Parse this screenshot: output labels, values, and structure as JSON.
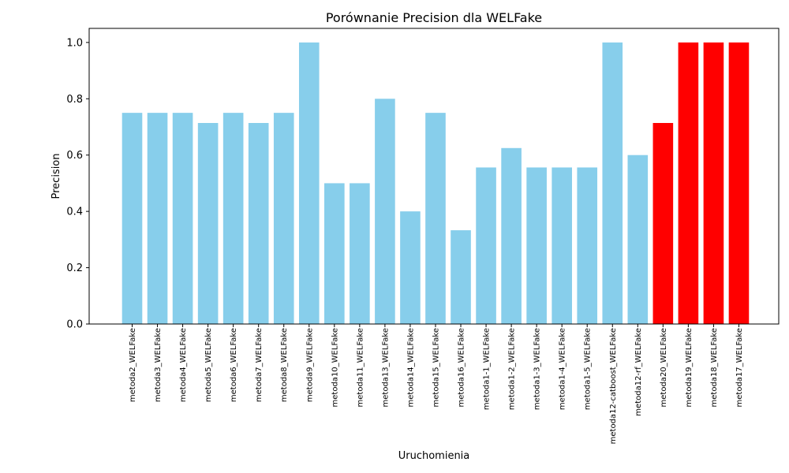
{
  "chart_data": {
    "type": "bar",
    "title": "Porównanie Precision dla WELFake",
    "xlabel": "Uruchomienia",
    "ylabel": "Precision",
    "ylim": [
      0,
      1.05
    ],
    "yticks": [
      "0.0",
      "0.2",
      "0.4",
      "0.6",
      "0.8",
      "1.0"
    ],
    "ytick_values": [
      0.0,
      0.2,
      0.4,
      0.6,
      0.8,
      1.0
    ],
    "categories": [
      "metoda2_WELFake",
      "metoda3_WELFake",
      "metoda4_WELFake",
      "metoda5_WELFake",
      "metoda6_WELFake",
      "metoda7_WELFake",
      "metoda8_WELFake",
      "metoda9_WELFake",
      "metoda10_WELFake",
      "metoda11_WELFake",
      "metoda13_WELFake",
      "metoda14_WELFake",
      "metoda15_WELFake",
      "metoda16_WELFake",
      "metoda1-1_WELFake",
      "metoda1-2_WELFake",
      "metoda1-3_WELFake",
      "metoda1-4_WELFake",
      "metoda1-5_WELFake",
      "metoda12-catboost_WELFake",
      "metoda12-rf_WELFake",
      "metoda20_WELFake",
      "metoda19_WELFake",
      "metoda18_WELFake",
      "metoda17_WELFake"
    ],
    "values": [
      0.75,
      0.75,
      0.75,
      0.714,
      0.75,
      0.714,
      0.75,
      1.0,
      0.5,
      0.5,
      0.8,
      0.4,
      0.75,
      0.333,
      0.556,
      0.625,
      0.556,
      0.556,
      0.556,
      1.0,
      0.6,
      0.714,
      1.0,
      1.0,
      1.0
    ],
    "bar_colors": [
      "#87ceeb",
      "#87ceeb",
      "#87ceeb",
      "#87ceeb",
      "#87ceeb",
      "#87ceeb",
      "#87ceeb",
      "#87ceeb",
      "#87ceeb",
      "#87ceeb",
      "#87ceeb",
      "#87ceeb",
      "#87ceeb",
      "#87ceeb",
      "#87ceeb",
      "#87ceeb",
      "#87ceeb",
      "#87ceeb",
      "#87ceeb",
      "#87ceeb",
      "#87ceeb",
      "#ff0000",
      "#ff0000",
      "#ff0000",
      "#ff0000"
    ],
    "grid": false
  }
}
